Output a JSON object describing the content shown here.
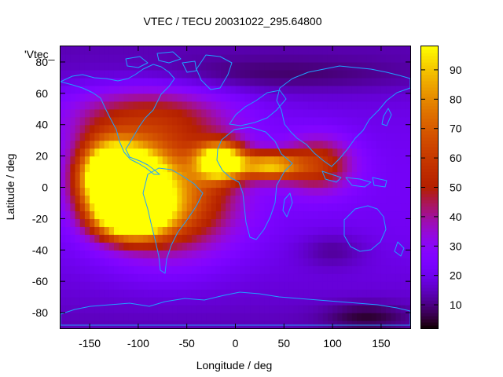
{
  "chart_data": {
    "type": "heatmap",
    "title": "VTEC / TECU 20031022_295.64800",
    "xlabel": "Longitude / deg",
    "ylabel": "Latitude / deg",
    "series_label": "'Vtec_",
    "xlim": [
      -180,
      180
    ],
    "ylim": [
      -90,
      90
    ],
    "x_ticks": [
      -150,
      -100,
      -50,
      0,
      50,
      100,
      150
    ],
    "y_ticks": [
      -80,
      -60,
      -40,
      -20,
      0,
      20,
      40,
      60,
      80
    ],
    "colorbar": {
      "range": [
        2,
        98
      ],
      "ticks": [
        10,
        20,
        30,
        40,
        50,
        60,
        70,
        80,
        90
      ],
      "palette": "black-purple-red-orange-yellow"
    },
    "background_level": 14,
    "features": [
      {
        "lon": -112,
        "lat": 6,
        "peak": 95,
        "lon_spread": 26,
        "lat_spread": 14
      },
      {
        "lon": -108,
        "lat": -18,
        "peak": 90,
        "lon_spread": 25,
        "lat_spread": 10
      },
      {
        "lon": -70,
        "lat": -5,
        "peak": 58,
        "lon_spread": 45,
        "lat_spread": 24
      },
      {
        "lon": -15,
        "lat": 17,
        "peak": 86,
        "lon_spread": 17,
        "lat_spread": 8
      },
      {
        "lon": 35,
        "lat": 14,
        "peak": 62,
        "lon_spread": 22,
        "lat_spread": 6
      },
      {
        "lon": -135,
        "lat": 8,
        "peak": 55,
        "lon_spread": 20,
        "lat_spread": 16
      },
      {
        "lon": 85,
        "lat": 15,
        "peak": 36,
        "lon_spread": 25,
        "lat_spread": 12
      },
      {
        "lon": -90,
        "lat": 45,
        "peak": 30,
        "lon_spread": 60,
        "lat_spread": 15
      },
      {
        "lon": 100,
        "lat": -40,
        "peak": -8,
        "lon_spread": 25,
        "lat_spread": 8
      },
      {
        "lon": 135,
        "lat": -82,
        "peak": -10,
        "lon_spread": 30,
        "lat_spread": 6
      },
      {
        "lon": 30,
        "lat": 72,
        "peak": -8,
        "lon_spread": 120,
        "lat_spread": 8
      }
    ]
  }
}
